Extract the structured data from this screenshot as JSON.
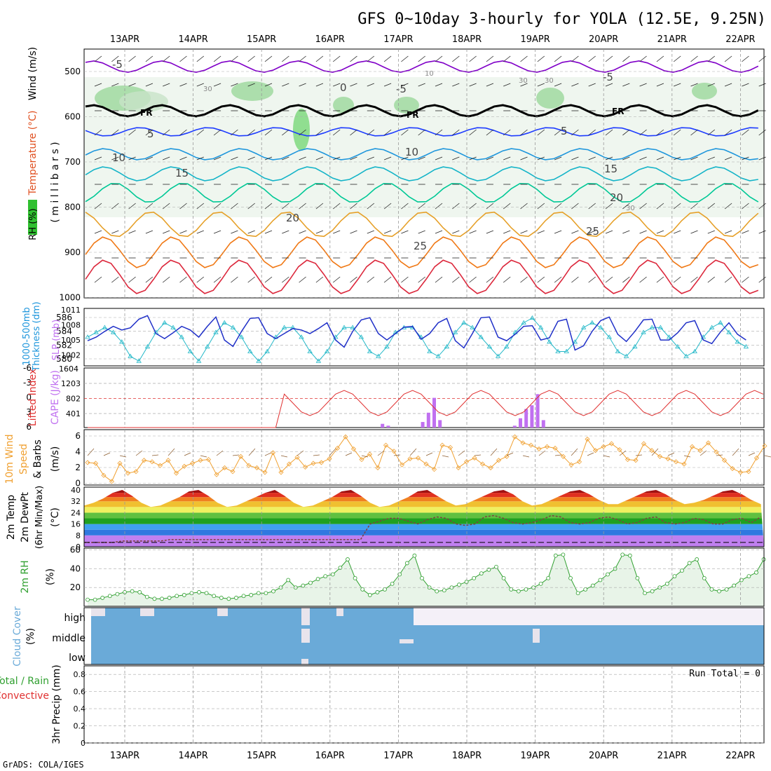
{
  "title": "GFS 0~10day 3-hourly for YOLA (12.5E, 9.25N)",
  "credit": "GrADS: COLA/IGES",
  "dates": [
    "13APR",
    "14APR",
    "15APR",
    "16APR",
    "17APR",
    "18APR",
    "19APR",
    "20APR",
    "21APR",
    "22APR"
  ],
  "run_total_label": "Run Total = 0",
  "panels": {
    "upper_air": {
      "labels": [
        "RH (%)",
        "Temperature (°C)",
        "Wind (m/s)",
        "( m i l l i b a r s )"
      ],
      "y_ticks": [
        "500",
        "600",
        "700",
        "800",
        "900",
        "1000"
      ],
      "freezing_label": "FR",
      "isotherm_labels": [
        "-5",
        "-5",
        "-5",
        "0",
        "5",
        "5",
        "10",
        "10",
        "15",
        "15",
        "20",
        "20",
        "25",
        "25"
      ],
      "rh_labels": [
        "30",
        "30",
        "30",
        "10",
        "30"
      ]
    },
    "thickness_slp": {
      "labels": [
        "1000-500mb",
        "Thickness (dm)",
        "SLP (mb)"
      ],
      "left_ticks": [
        "586",
        "584",
        "582",
        "580"
      ],
      "right_ticks": [
        "1011",
        "1008",
        "1005",
        "1002"
      ],
      "bottom_label": "1604"
    },
    "cape_li": {
      "labels": [
        "Lifted Index",
        "CAPE (J/kg)"
      ],
      "left_ticks": [
        "-6",
        "-3",
        "0",
        "3",
        "6"
      ],
      "right_ticks": [
        "1203",
        "802",
        "401"
      ]
    },
    "wind10m": {
      "labels": [
        "10m Wind",
        "Speed",
        "& Barbs",
        "(m/s)"
      ],
      "y_ticks": [
        "6",
        "4",
        "2",
        "0"
      ]
    },
    "temp2m": {
      "labels": [
        "2m Temp",
        "2m DewPt",
        "(6hr Min/Max)",
        "(°C)"
      ],
      "y_ticks": [
        "40",
        "32",
        "24",
        "16",
        "8",
        "0"
      ]
    },
    "rh2m": {
      "labels": [
        "2m RH",
        "(%)"
      ],
      "y_ticks": [
        "60",
        "40",
        "20"
      ]
    },
    "cloud": {
      "labels": [
        "Cloud Cover",
        "(%)"
      ],
      "rows": [
        "high",
        "middle",
        "low"
      ]
    },
    "precip": {
      "labels": [
        "Total / Rain",
        "Convective",
        "3hr Precip (mm)"
      ],
      "y_ticks": [
        "0.8",
        "0.6",
        "0.4",
        "0.2",
        "0"
      ]
    }
  },
  "colors": {
    "isotherm_cold": "#8000c8",
    "isotherm_5": "#1e3cff",
    "isotherm_10": "#1e96dc",
    "isotherm_15": "#14b4c8",
    "isotherm_20": "#00c896",
    "isotherm_25": "#e6a028",
    "isotherm_30": "#f07814",
    "isotherm_35": "#dc283c",
    "isotherm_40": "#c8008c",
    "slp": "#22b8c8",
    "thickness": "#2030c8",
    "cape": "#c070f0",
    "lifted_index": "#e03030",
    "wind_speed": "#f0a030",
    "rh2m": "#30a030",
    "cloud": "#6aaad8"
  },
  "chart_data": [
    {
      "type": "line",
      "title": "Thickness and SLP",
      "x_unit": "3-hour steps from 12APR 18Z",
      "series": [
        {
          "name": "SLP (mb)",
          "values": [
            1006,
            1007,
            1008,
            1007,
            1005,
            1002,
            1001,
            1004,
            1007,
            1009,
            1008,
            1006,
            1003,
            1001,
            1004,
            1007,
            1009,
            1008,
            1006,
            1003,
            1001,
            1003,
            1006,
            1008,
            1008,
            1006,
            1003,
            1001,
            1003,
            1006,
            1008,
            1008,
            1006,
            1003,
            1002,
            1004,
            1007,
            1008,
            1008,
            1006,
            1003,
            1002,
            1004,
            1007,
            1009,
            1008,
            1006,
            1004,
            1002,
            1004,
            1007,
            1009,
            1010,
            1008,
            1005,
            1003,
            1003,
            1005,
            1008,
            1009,
            1008,
            1006,
            1003,
            1002,
            1004,
            1007,
            1008,
            1008,
            1006,
            1004,
            1002,
            1003,
            1006,
            1008,
            1009,
            1007,
            1005,
            1004
          ]
        },
        {
          "name": "Thickness (dm)",
          "values": [
            582.5,
            583,
            583.8,
            584.5,
            584,
            584.3,
            585.5,
            586,
            583.5,
            582.8,
            583.6,
            584.5,
            584,
            583,
            584.5,
            585.8,
            582.6,
            581.7,
            583.8,
            585.6,
            585.7,
            583.5,
            582.8,
            583.5,
            584.2,
            584,
            583.5,
            584.2,
            585,
            582.6,
            581.6,
            583.8,
            585.4,
            585.7,
            583.5,
            582.6,
            583.5,
            584.4,
            584.5,
            582.7,
            583.5,
            585,
            585.6,
            582.5,
            581.5,
            583.5,
            585.7,
            585.8,
            583,
            582.5,
            583.4,
            584.5,
            584.6,
            582.6,
            582.9,
            585.2,
            585.5,
            581.2,
            581.8,
            583.8,
            585.3,
            585.8,
            583.4,
            582.4,
            583.8,
            585.4,
            585.5,
            582.6,
            582.6,
            583.6,
            585,
            585.3,
            582.6,
            582.1,
            583.7,
            585,
            583.4,
            582.6
          ]
        }
      ]
    },
    {
      "type": "bar",
      "title": "CAPE and Lifted Index",
      "x_unit": "3-hour steps from 12APR 18Z",
      "ylim_cape": [
        0,
        1604
      ],
      "ylim_li": [
        6,
        -6
      ],
      "series": [
        {
          "name": "CAPE (J/kg)",
          "values": [
            0,
            0,
            0,
            0,
            0,
            0,
            0,
            0,
            0,
            0,
            0,
            0,
            0,
            0,
            0,
            0,
            0,
            0,
            0,
            0,
            0,
            0,
            0,
            0,
            0,
            0,
            0,
            0,
            0,
            0,
            0,
            0,
            0,
            0,
            0,
            0,
            0,
            0,
            0,
            0,
            0,
            0,
            0,
            0,
            0,
            0,
            0,
            0,
            0,
            0,
            0,
            100,
            50,
            0,
            0,
            0,
            0,
            0,
            150,
            400,
            800,
            200,
            0,
            0,
            0,
            0,
            0,
            0,
            0,
            0,
            0,
            0,
            0,
            0,
            50,
            250,
            500,
            600,
            900,
            200,
            0,
            0,
            0,
            0,
            0,
            0,
            0,
            0,
            0,
            0,
            0,
            0,
            0,
            0,
            0,
            0,
            0,
            0,
            0,
            0,
            0,
            0,
            0,
            0,
            0,
            0,
            0,
            0,
            0,
            0,
            0,
            0,
            0,
            0,
            0,
            0,
            0,
            0
          ]
        },
        {
          "name": "Lifted Index",
          "values": [
            0,
            0,
            0,
            0,
            0,
            0,
            0,
            0,
            0,
            0,
            0,
            0,
            0,
            0,
            0,
            0,
            0,
            0,
            0,
            0,
            0,
            0,
            0,
            0,
            0,
            0,
            0,
            0,
            0,
            0,
            0,
            0,
            0,
            0,
            0,
            0,
            0,
            0,
            0,
            0,
            0,
            0,
            0,
            0,
            0,
            0,
            0,
            0,
            0,
            0,
            0,
            0,
            0,
            0,
            0,
            0,
            0,
            0,
            0,
            0,
            0,
            0,
            0,
            0,
            0,
            0,
            0,
            0,
            0,
            0,
            0,
            0,
            0,
            0,
            0,
            0,
            0,
            0,
            0,
            0,
            0,
            0,
            0,
            0,
            0,
            0,
            0,
            0,
            0,
            0,
            0,
            0,
            0,
            0,
            0,
            0,
            0,
            0,
            0,
            0,
            0,
            0,
            0,
            0,
            0,
            0,
            0,
            0,
            0,
            0,
            0,
            0,
            0,
            0,
            0,
            0,
            0,
            0,
            0,
            0
          ]
        }
      ]
    },
    {
      "type": "line",
      "title": "10m wind speed",
      "ylim": [
        0,
        6.5
      ],
      "series": [
        {
          "name": "Speed (m/s)",
          "values": [
            2.7,
            2.6,
            1.0,
            0.2,
            2.6,
            1.3,
            1.5,
            3.0,
            2.8,
            2.3,
            3.0,
            1.3,
            2.2,
            2.6,
            3.0,
            3.1,
            1.1,
            2.0,
            1.5,
            3.5,
            2.3,
            2.0,
            1.4,
            4.0,
            1.4,
            2.5,
            3.4,
            2.1,
            2.6,
            2.7,
            3.2,
            4.6,
            6.1,
            4.5,
            3.1,
            3.8,
            2.0,
            5.0,
            4.2,
            2.4,
            3.2,
            3.3,
            2.5,
            1.8,
            5.0,
            4.7,
            2.0,
            2.8,
            3.3,
            2.5,
            2.0,
            3.0,
            3.5,
            6.1,
            5.3,
            5.0,
            4.5,
            4.8,
            4.6,
            3.5,
            2.4,
            2.8,
            5.8,
            4.3,
            4.8,
            5.2,
            4.4,
            3.1,
            3.0,
            5.2,
            4.3,
            3.5,
            3.2,
            2.8,
            2.5,
            4.8,
            4.3,
            5.3,
            4.1,
            3.0,
            1.9,
            1.4,
            1.5,
            3.3,
            4.9
          ]
        }
      ]
    },
    {
      "type": "area",
      "title": "2m RH",
      "ylim": [
        0,
        60
      ],
      "series": [
        {
          "name": "2m RH (%)",
          "values": [
            7,
            7,
            9,
            11,
            13,
            15,
            16,
            15,
            10,
            8,
            8,
            9,
            11,
            12,
            14,
            15,
            14,
            11,
            9,
            8,
            9,
            11,
            12,
            14,
            14,
            16,
            20,
            28,
            20,
            22,
            25,
            29,
            32,
            34,
            41,
            50,
            30,
            18,
            12,
            15,
            18,
            24,
            34,
            46,
            54,
            30,
            20,
            16,
            17,
            20,
            23,
            26,
            30,
            35,
            39,
            42,
            30,
            18,
            16,
            18,
            20,
            24,
            30,
            54,
            55,
            30,
            14,
            18,
            22,
            28,
            34,
            40,
            55,
            54,
            30,
            14,
            16,
            20,
            24,
            32,
            38,
            46,
            50,
            30,
            18,
            16,
            18,
            22,
            28,
            32,
            36,
            50
          ]
        }
      ]
    },
    {
      "type": "line",
      "title": "2m Temperature and DewPt",
      "ylim": [
        0,
        42
      ],
      "series": [
        {
          "name": "2m Temp (°C)",
          "values": [
            29,
            31,
            34,
            38,
            40,
            36,
            31,
            28,
            29,
            32,
            35,
            39,
            40,
            36,
            31,
            28,
            29,
            32,
            35,
            38,
            40,
            36,
            31,
            28,
            29,
            32,
            35,
            39,
            40,
            36,
            31,
            28,
            29,
            32,
            35,
            39,
            40,
            36,
            32,
            29,
            30,
            33,
            36,
            39,
            40,
            37,
            32,
            29,
            30,
            33,
            36,
            39,
            40,
            37,
            33,
            30,
            30,
            33,
            36,
            39,
            40,
            37,
            33,
            30,
            31,
            33,
            36,
            39,
            40,
            37,
            33,
            30
          ]
        },
        {
          "name": "2m DewPt (°C)",
          "values": [
            3,
            3,
            3,
            3,
            4,
            4,
            4,
            4,
            4,
            5,
            5,
            5,
            5,
            5,
            5,
            5,
            5,
            5,
            5,
            5,
            5,
            5,
            5,
            5,
            5,
            5,
            5,
            5,
            5,
            5,
            16,
            18,
            20,
            20,
            18,
            16,
            19,
            21,
            20,
            16,
            15,
            16,
            21,
            22,
            20,
            17,
            16,
            17,
            19,
            22,
            21,
            17,
            16,
            17,
            20,
            21,
            19,
            16,
            17,
            20,
            21,
            17,
            16,
            17,
            20,
            19,
            16,
            16,
            19,
            20,
            17,
            21
          ]
        }
      ]
    },
    {
      "type": "bar",
      "title": "3hr Precip",
      "ylim": [
        0,
        0.9
      ],
      "series": [
        {
          "name": "Total / Rain (mm)",
          "values": [
            0,
            0,
            0,
            0,
            0,
            0,
            0,
            0,
            0,
            0
          ]
        },
        {
          "name": "Convective (mm)",
          "values": [
            0,
            0,
            0,
            0,
            0,
            0,
            0,
            0,
            0,
            0
          ]
        }
      ]
    }
  ]
}
